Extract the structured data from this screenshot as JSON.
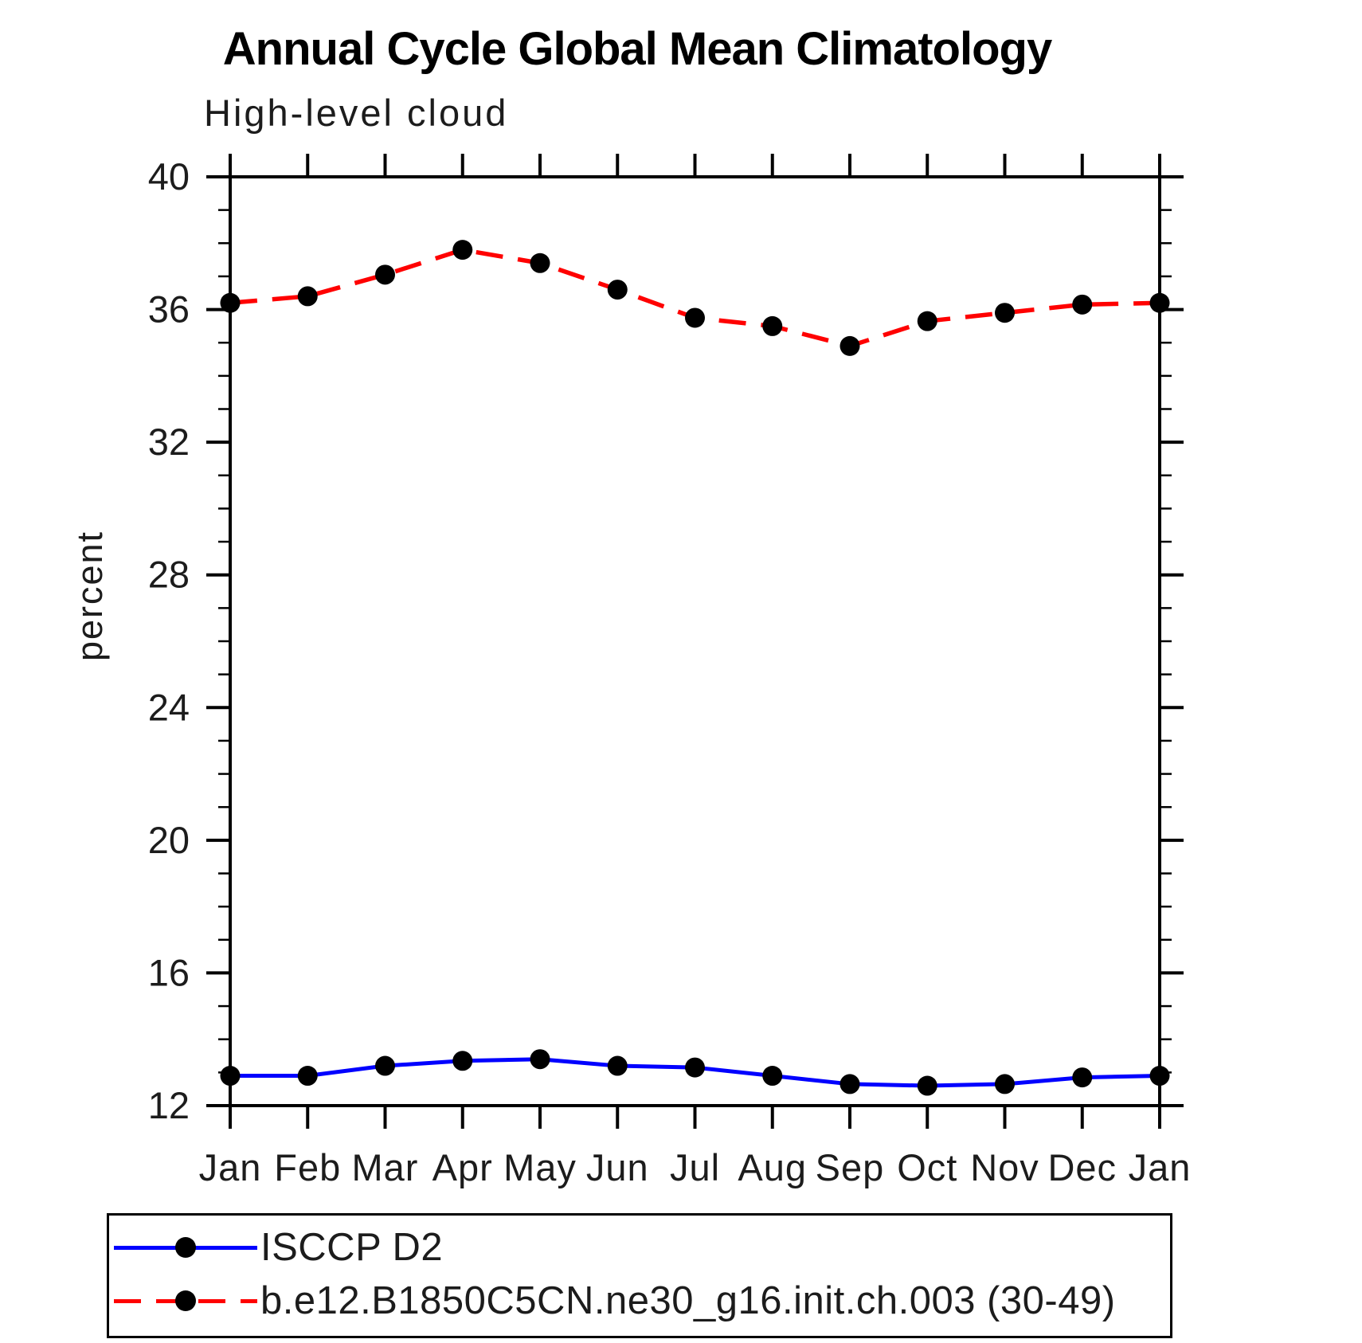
{
  "page": {
    "title": "Annual Cycle Global Mean Climatology",
    "subtitle": "High-level cloud"
  },
  "chart_data": {
    "type": "line",
    "title": "Annual Cycle Global Mean Climatology",
    "subtitle": "High-level cloud",
    "xlabel": "",
    "ylabel": "percent",
    "categories": [
      "Jan",
      "Feb",
      "Mar",
      "Apr",
      "May",
      "Jun",
      "Jul",
      "Aug",
      "Sep",
      "Oct",
      "Nov",
      "Dec",
      "Jan"
    ],
    "ylim": [
      12,
      40
    ],
    "ytick_major_step": 4,
    "ytick_minor_step": 1,
    "grid": false,
    "legend_position": "bottom-left-box",
    "frame_color": "#000000",
    "marker": "filled-circle",
    "marker_color": "#000000",
    "series": [
      {
        "name": "ISCCP D2",
        "color": "#0000ff",
        "line_style": "solid",
        "values": [
          12.9,
          12.9,
          13.2,
          13.35,
          13.4,
          13.2,
          13.15,
          12.9,
          12.65,
          12.6,
          12.65,
          12.85,
          12.9
        ]
      },
      {
        "name": "b.e12.B1850C5CN.ne30_g16.init.ch.003 (30-49)",
        "color": "#ff0000",
        "line_style": "dashed",
        "values": [
          36.2,
          36.4,
          37.05,
          37.8,
          37.4,
          36.6,
          35.75,
          35.5,
          34.9,
          35.65,
          35.9,
          36.15,
          36.2
        ]
      }
    ]
  }
}
